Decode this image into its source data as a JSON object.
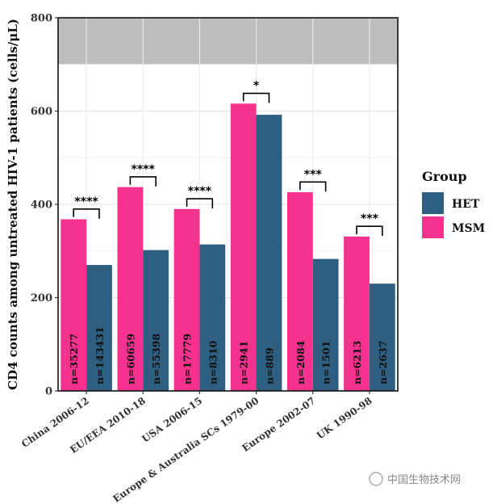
{
  "chart_data": {
    "type": "bar",
    "ylabel": "CD4 counts among untreated HIV-1 patients (cells/μL)",
    "ylim": [
      0,
      800
    ],
    "yticks": [
      0,
      200,
      400,
      600,
      800
    ],
    "shaded_band": [
      700,
      800
    ],
    "grid": true,
    "legend_title": "Group",
    "legend_position": "right",
    "categories": [
      "China 2006-12",
      "EU/EEA 2010-18",
      "USA 2006-15",
      "Europe & Australia SCs 1979-00",
      "Europe 2002-07",
      "UK 1990-98"
    ],
    "series": [
      {
        "name": "MSM",
        "color": "#F5338E",
        "values": [
          368,
          437,
          390,
          616,
          426,
          331
        ],
        "n_labels": [
          "n=35277",
          "n=60659",
          "n=17779",
          "n=2941",
          "n=2084",
          "n=6213"
        ]
      },
      {
        "name": "HET",
        "color": "#2E5F80",
        "values": [
          270,
          302,
          314,
          592,
          283,
          230
        ],
        "n_labels": [
          "n=143431",
          "n=55398",
          "n=8310",
          "n=889",
          "n=1501",
          "n=2637"
        ]
      }
    ],
    "significance": [
      "****",
      "****",
      "****",
      "*",
      "***",
      "***"
    ],
    "legend_order": [
      "HET",
      "MSM"
    ]
  },
  "watermark": "中国生物技术网"
}
